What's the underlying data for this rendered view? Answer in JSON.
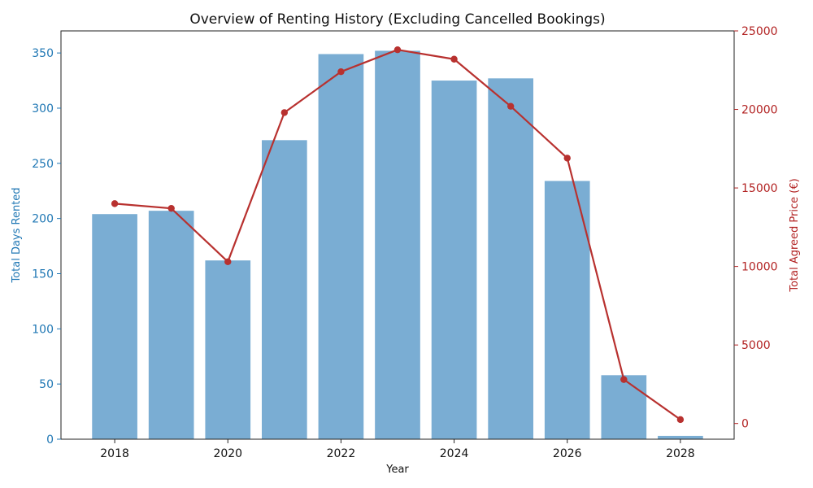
{
  "chart_data": {
    "type": "bar+line",
    "title": "Overview of Renting History (Excluding Cancelled Bookings)",
    "xlabel": "Year",
    "x_ticks": [
      "2018",
      "2020",
      "2022",
      "2024",
      "2026",
      "2028"
    ],
    "xlim": [
      2017.05,
      2028.95
    ],
    "left_axis": {
      "label": "Total Days Rented",
      "ylim": [
        0,
        370
      ],
      "ticks": [
        0,
        50,
        100,
        150,
        200,
        250,
        300,
        350
      ],
      "color": "#1f77b4"
    },
    "right_axis": {
      "label": "Total Agreed Price (€)",
      "ylim": [
        -1000,
        25000
      ],
      "ticks": [
        0,
        5000,
        10000,
        15000,
        20000,
        25000
      ],
      "color": "#b22222"
    },
    "grid": false,
    "series": [
      {
        "type": "bar",
        "axis": "left",
        "color": "#7aadd3",
        "x": [
          2018,
          2019,
          2020,
          2021,
          2022,
          2023,
          2024,
          2025,
          2026,
          2027,
          2028
        ],
        "values": [
          204,
          207,
          162,
          271,
          349,
          352,
          325,
          327,
          234,
          58,
          3
        ]
      },
      {
        "type": "line",
        "axis": "right",
        "color": "#b8312f",
        "x": [
          2018,
          2019,
          2020,
          2021,
          2022,
          2023,
          2024,
          2025,
          2026,
          2027,
          2028
        ],
        "values": [
          14000,
          13700,
          10300,
          19800,
          22400,
          23800,
          23200,
          20200,
          16900,
          2800,
          250
        ]
      }
    ]
  }
}
